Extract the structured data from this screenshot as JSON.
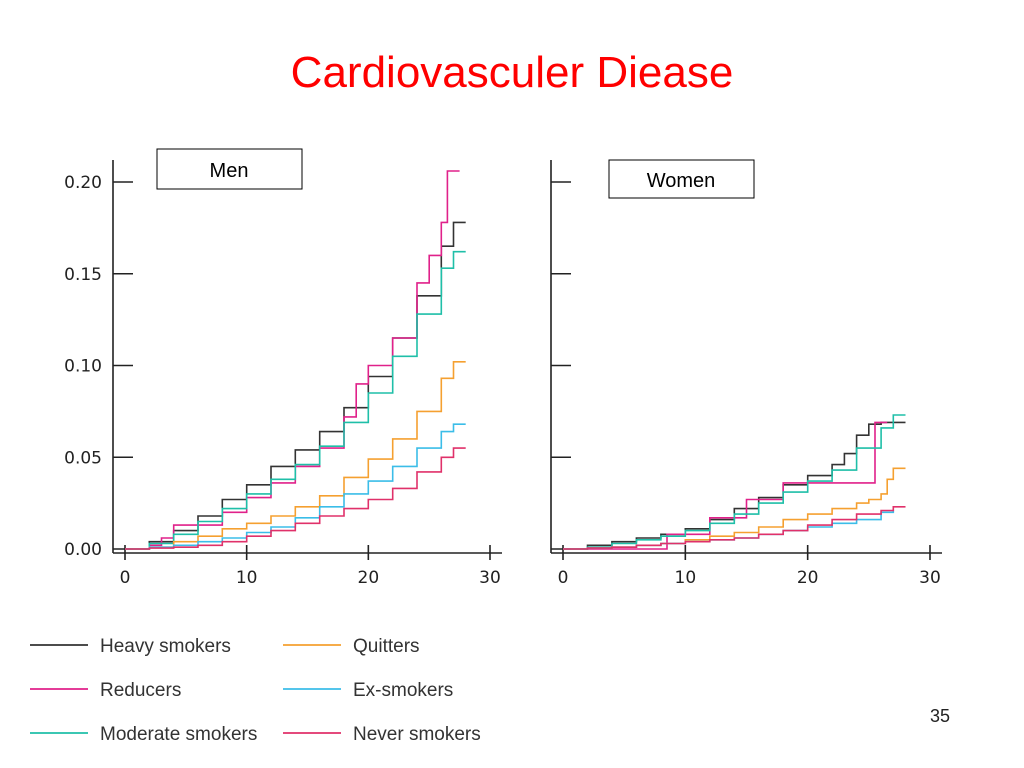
{
  "slide": {
    "title": "Cardiovasculer Diease",
    "page_number": "35"
  },
  "chart_data": {
    "type": "line",
    "series_styles": [
      {
        "name": "Heavy smokers",
        "color": "#333333"
      },
      {
        "name": "Reducers",
        "color": "#e0218a"
      },
      {
        "name": "Moderate smokers",
        "color": "#1fbfa8"
      },
      {
        "name": "Quitters",
        "color": "#f5a030"
      },
      {
        "name": "Ex-smokers",
        "color": "#3bbde8"
      },
      {
        "name": "Never smokers",
        "color": "#e0316a"
      }
    ],
    "legend": {
      "placement": "bottom",
      "entries": [
        "Heavy smokers",
        "Quitters",
        "Reducers",
        "Ex-smokers",
        "Moderate smokers",
        "Never smokers"
      ]
    },
    "panels": [
      {
        "label": "Men",
        "xlim": [
          0,
          30
        ],
        "ylim": [
          0,
          0.2
        ],
        "x_ticks": [
          "0",
          "10",
          "20",
          "30"
        ],
        "y_ticks": [
          "0.00",
          "0.05",
          "0.10",
          "0.15",
          "0.20"
        ],
        "series": [
          {
            "name": "Heavy smokers",
            "x": [
              0,
              2,
              4,
              6,
              8,
              10,
              12,
              14,
              16,
              18,
              20,
              22,
              24,
              26,
              27,
              28
            ],
            "y": [
              0,
              0.004,
              0.01,
              0.018,
              0.027,
              0.035,
              0.045,
              0.054,
              0.064,
              0.077,
              0.094,
              0.115,
              0.138,
              0.165,
              0.178,
              0.178
            ]
          },
          {
            "name": "Reducers",
            "x": [
              0,
              2,
              3,
              4,
              6,
              8,
              10,
              12,
              14,
              16,
              18,
              19,
              20,
              22,
              24,
              25,
              26,
              26.5,
              27.5
            ],
            "y": [
              0,
              0.002,
              0.006,
              0.013,
              0.013,
              0.02,
              0.028,
              0.036,
              0.045,
              0.055,
              0.072,
              0.09,
              0.1,
              0.115,
              0.145,
              0.16,
              0.178,
              0.206,
              0.206
            ]
          },
          {
            "name": "Moderate smokers",
            "x": [
              0,
              2,
              4,
              6,
              8,
              10,
              12,
              14,
              16,
              18,
              20,
              22,
              24,
              26,
              27,
              28
            ],
            "y": [
              0,
              0.003,
              0.008,
              0.015,
              0.022,
              0.03,
              0.038,
              0.046,
              0.056,
              0.069,
              0.085,
              0.105,
              0.128,
              0.153,
              0.162,
              0.162
            ]
          },
          {
            "name": "Quitters",
            "x": [
              0,
              2,
              4,
              6,
              8,
              10,
              12,
              14,
              16,
              18,
              20,
              22,
              24,
              26,
              27,
              28
            ],
            "y": [
              0,
              0.001,
              0.004,
              0.007,
              0.011,
              0.014,
              0.018,
              0.023,
              0.029,
              0.039,
              0.049,
              0.06,
              0.075,
              0.093,
              0.102,
              0.102
            ]
          },
          {
            "name": "Ex-smokers",
            "x": [
              0,
              2,
              4,
              6,
              8,
              10,
              12,
              14,
              16,
              18,
              20,
              22,
              24,
              26,
              27,
              28
            ],
            "y": [
              0,
              0.001,
              0.002,
              0.004,
              0.006,
              0.009,
              0.012,
              0.017,
              0.023,
              0.03,
              0.037,
              0.045,
              0.055,
              0.064,
              0.068,
              0.068
            ]
          },
          {
            "name": "Never smokers",
            "x": [
              0,
              2,
              4,
              6,
              8,
              10,
              12,
              14,
              16,
              18,
              20,
              22,
              24,
              26,
              27,
              28
            ],
            "y": [
              0,
              0.0005,
              0.001,
              0.002,
              0.004,
              0.007,
              0.01,
              0.014,
              0.018,
              0.022,
              0.027,
              0.033,
              0.042,
              0.05,
              0.055,
              0.055
            ]
          }
        ]
      },
      {
        "label": "Women",
        "xlim": [
          0,
          30
        ],
        "ylim": [
          0,
          0.2
        ],
        "x_ticks": [
          "0",
          "10",
          "20",
          "30"
        ],
        "y_ticks": [
          "",
          "",
          "",
          "",
          ""
        ],
        "series": [
          {
            "name": "Heavy smokers",
            "x": [
              0,
              2,
              4,
              6,
              8,
              10,
              12,
              14,
              16,
              18,
              20,
              22,
              23,
              24,
              25,
              26,
              28
            ],
            "y": [
              0,
              0.002,
              0.004,
              0.006,
              0.008,
              0.011,
              0.016,
              0.022,
              0.028,
              0.035,
              0.04,
              0.046,
              0.052,
              0.062,
              0.068,
              0.069,
              0.069
            ]
          },
          {
            "name": "Reducers",
            "x": [
              0,
              8,
              8.5,
              11,
              12,
              14,
              15,
              17,
              18,
              25,
              25.5,
              26.5
            ],
            "y": [
              0,
              0,
              0.008,
              0.008,
              0.017,
              0.017,
              0.027,
              0.027,
              0.036,
              0.036,
              0.069,
              0.069
            ]
          },
          {
            "name": "Moderate smokers",
            "x": [
              0,
              2,
              4,
              6,
              8,
              10,
              12,
              14,
              16,
              18,
              20,
              22,
              24,
              26,
              27,
              28
            ],
            "y": [
              0,
              0.001,
              0.003,
              0.005,
              0.007,
              0.01,
              0.014,
              0.019,
              0.025,
              0.031,
              0.037,
              0.043,
              0.055,
              0.066,
              0.073,
              0.073
            ]
          },
          {
            "name": "Quitters",
            "x": [
              0,
              2,
              4,
              6,
              8,
              10,
              12,
              14,
              16,
              18,
              20,
              22,
              24,
              25,
              26,
              26.5,
              27,
              28
            ],
            "y": [
              0,
              0.0005,
              0.001,
              0.002,
              0.003,
              0.005,
              0.007,
              0.009,
              0.012,
              0.016,
              0.019,
              0.022,
              0.025,
              0.027,
              0.03,
              0.038,
              0.044,
              0.044
            ]
          },
          {
            "name": "Ex-smokers",
            "x": [
              0,
              2,
              4,
              6,
              8,
              10,
              12,
              14,
              16,
              18,
              20,
              22,
              24,
              26,
              27
            ],
            "y": [
              0,
              0.0005,
              0.001,
              0.002,
              0.003,
              0.004,
              0.005,
              0.006,
              0.008,
              0.01,
              0.012,
              0.014,
              0.016,
              0.02,
              0.021
            ]
          },
          {
            "name": "Never smokers",
            "x": [
              0,
              2,
              4,
              6,
              8,
              10,
              12,
              14,
              16,
              18,
              20,
              22,
              24,
              26,
              27,
              28
            ],
            "y": [
              0,
              0.0005,
              0.001,
              0.002,
              0.003,
              0.004,
              0.005,
              0.006,
              0.008,
              0.01,
              0.013,
              0.016,
              0.019,
              0.021,
              0.023,
              0.023
            ]
          }
        ]
      }
    ]
  }
}
